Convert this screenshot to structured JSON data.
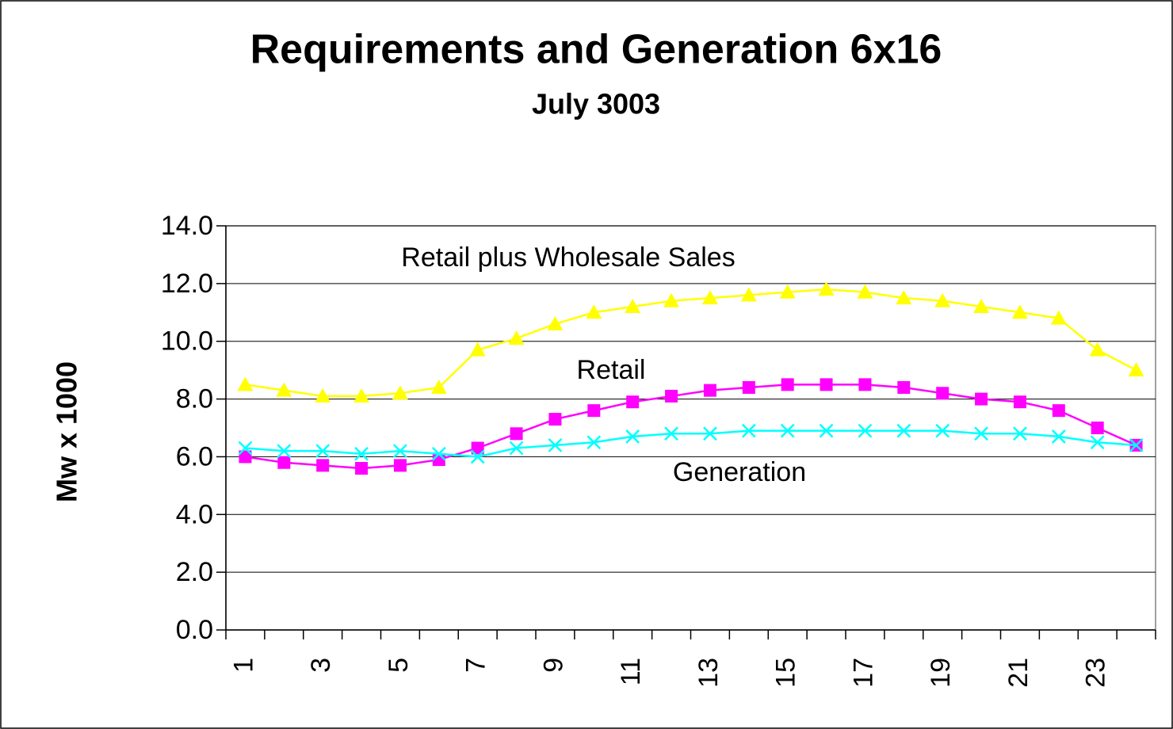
{
  "chart_data": {
    "type": "line",
    "title": "Requirements and Generation 6x16",
    "subtitle": "July 3003",
    "y_label": "Mw x 1000",
    "categories": [
      1,
      null,
      3,
      null,
      5,
      null,
      7,
      null,
      9,
      null,
      11,
      null,
      13,
      null,
      15,
      null,
      17,
      null,
      19,
      null,
      21,
      null,
      23,
      null
    ],
    "series": [
      {
        "name": "Retail plus Wholesale Sales",
        "color": "#ffff00",
        "marker": "triangle",
        "values": [
          8.5,
          8.3,
          8.1,
          8.1,
          8.2,
          8.4,
          9.7,
          10.1,
          10.6,
          11.0,
          11.2,
          11.4,
          11.5,
          11.6,
          11.7,
          11.8,
          11.7,
          11.5,
          11.4,
          11.2,
          11.0,
          10.8,
          9.7,
          9.0
        ]
      },
      {
        "name": "Retail",
        "color": "#ff00ff",
        "marker": "square",
        "values": [
          6.0,
          5.8,
          5.7,
          5.6,
          5.7,
          5.9,
          6.3,
          6.8,
          7.3,
          7.6,
          7.9,
          8.1,
          8.3,
          8.4,
          8.5,
          8.5,
          8.5,
          8.4,
          8.2,
          8.0,
          7.9,
          7.6,
          7.0,
          6.4
        ]
      },
      {
        "name": "Generation",
        "color": "#00ffff",
        "marker": "x",
        "values": [
          6.3,
          6.2,
          6.2,
          6.1,
          6.2,
          6.1,
          6.0,
          6.3,
          6.4,
          6.5,
          6.7,
          6.8,
          6.8,
          6.9,
          6.9,
          6.9,
          6.9,
          6.9,
          6.9,
          6.8,
          6.8,
          6.7,
          6.5,
          6.4
        ]
      }
    ],
    "ylim": [
      0,
      14
    ],
    "yticks": [
      {
        "value": 0,
        "label": "0.0"
      },
      {
        "value": 2,
        "label": "2.0"
      },
      {
        "value": 4,
        "label": "4.0"
      },
      {
        "value": 6,
        "label": "6.0"
      },
      {
        "value": 8,
        "label": "8.0"
      },
      {
        "value": 10,
        "label": "10.0"
      },
      {
        "value": 12,
        "label": "12.0"
      },
      {
        "value": 14,
        "label": "14.0"
      }
    ],
    "grid": true
  }
}
